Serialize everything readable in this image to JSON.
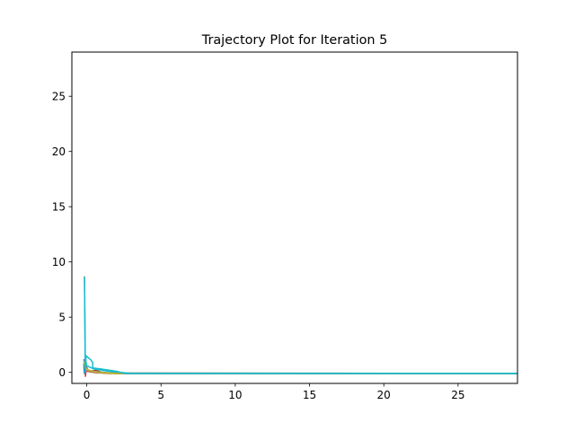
{
  "chart_data": {
    "type": "line",
    "title": "Trajectory Plot for Iteration 5",
    "xlabel": "",
    "ylabel": "",
    "xlim": [
      -1,
      29
    ],
    "ylim": [
      -1,
      29
    ],
    "xticks": [
      0,
      5,
      10,
      15,
      20,
      25
    ],
    "yticks": [
      0,
      5,
      10,
      15,
      20,
      25
    ],
    "grid": false,
    "series": [
      {
        "color": "#1f77b4",
        "x": [
          -0.2,
          -0.15,
          -0.1,
          0.0,
          0.3,
          1.0,
          2.0,
          3.0,
          29
        ],
        "y": [
          0.8,
          -0.1,
          0.4,
          0.2,
          0.05,
          -0.05,
          -0.1,
          -0.1,
          -0.1
        ]
      },
      {
        "color": "#ff7f0e",
        "x": [
          -0.15,
          -0.1,
          0.0,
          0.5,
          1.5,
          3.0,
          29
        ],
        "y": [
          0.6,
          0.2,
          0.1,
          0.0,
          -0.1,
          -0.1,
          -0.1
        ]
      },
      {
        "color": "#2ca02c",
        "x": [
          -0.1,
          -0.05,
          0.2,
          0.8,
          2.0,
          4.0,
          29
        ],
        "y": [
          0.9,
          0.3,
          0.15,
          0.0,
          -0.1,
          -0.1,
          -0.1
        ]
      },
      {
        "color": "#d62728",
        "x": [
          -0.1,
          -0.05,
          0.0,
          0.3,
          0.6,
          1.0,
          2.0,
          29
        ],
        "y": [
          -0.4,
          0.1,
          0.25,
          0.1,
          0.2,
          0.0,
          -0.1,
          -0.1
        ]
      },
      {
        "color": "#9467bd",
        "x": [
          -0.2,
          -0.1,
          0.1,
          0.6,
          1.5,
          3.0,
          29
        ],
        "y": [
          1.2,
          0.5,
          0.2,
          0.05,
          -0.05,
          -0.1,
          -0.1
        ]
      },
      {
        "color": "#8c564b",
        "x": [
          -0.15,
          -0.1,
          0.1,
          0.5,
          1.5,
          29
        ],
        "y": [
          0.7,
          0.3,
          0.1,
          0.0,
          -0.1,
          -0.1
        ]
      },
      {
        "color": "#e377c2",
        "x": [
          -0.1,
          0.0,
          0.3,
          1.0,
          2.5,
          29
        ],
        "y": [
          0.5,
          0.2,
          0.1,
          0.0,
          -0.1,
          -0.1
        ]
      },
      {
        "color": "#7f7f7f",
        "x": [
          -0.15,
          -0.1,
          -0.05,
          0.1,
          0.5,
          1.5,
          29
        ],
        "y": [
          8.7,
          1.6,
          0.6,
          0.2,
          0.1,
          -0.05,
          -0.1
        ]
      },
      {
        "color": "#bcbd22",
        "x": [
          -0.2,
          -0.1,
          0.2,
          0.8,
          2.0,
          29
        ],
        "y": [
          1.0,
          0.4,
          0.15,
          0.0,
          -0.1,
          -0.1
        ]
      },
      {
        "color": "#17becf",
        "x": [
          -0.15,
          -0.1,
          -0.05,
          0.3,
          0.4,
          0.4,
          1.0,
          2.0,
          2.6,
          3.5,
          29
        ],
        "y": [
          8.6,
          0.0,
          1.5,
          1.1,
          0.9,
          0.4,
          0.3,
          0.1,
          -0.1,
          -0.1,
          -0.1
        ]
      },
      {
        "color": "#17becf",
        "x": [
          -0.1,
          0.0,
          0.5,
          1.5,
          3.0,
          29
        ],
        "y": [
          1.3,
          0.6,
          0.3,
          0.1,
          -0.1,
          -0.1
        ]
      }
    ]
  }
}
